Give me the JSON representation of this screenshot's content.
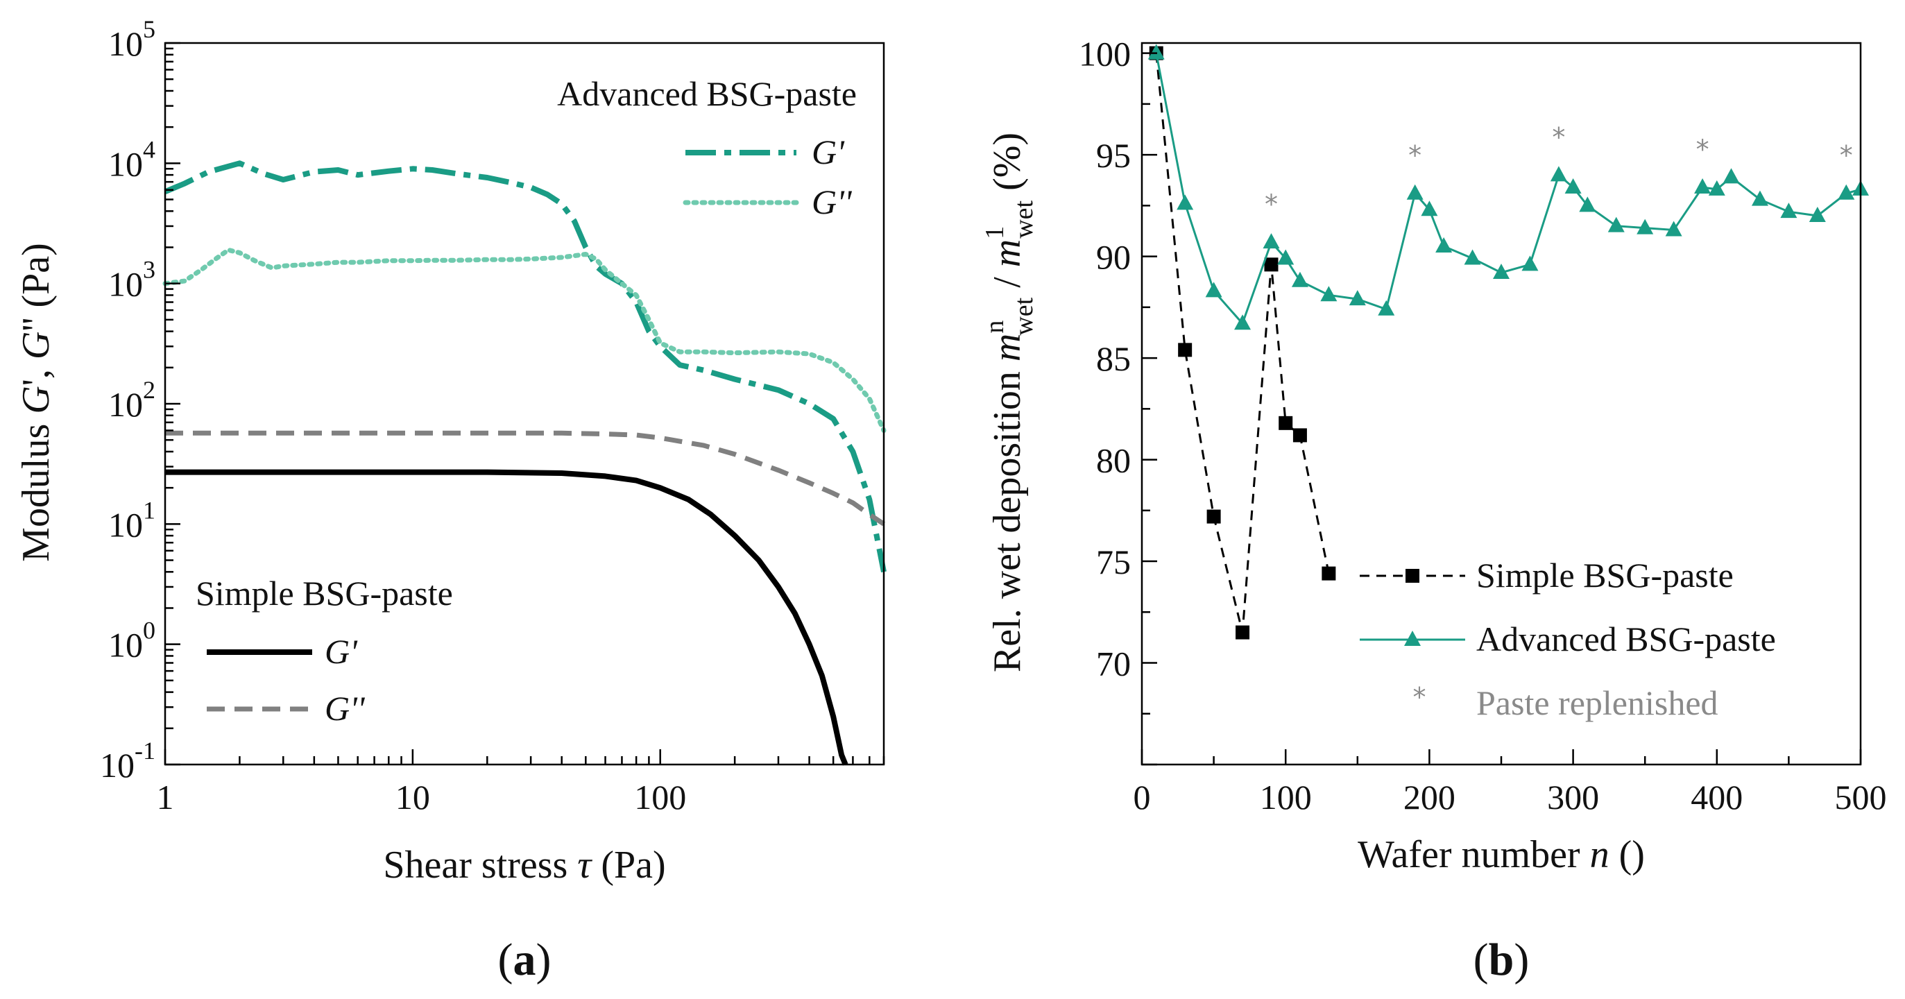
{
  "chart_data": [
    {
      "type": "line",
      "panel_label": "a",
      "xscale": "log",
      "yscale": "log",
      "xlim": [
        1,
        800
      ],
      "ylim": [
        0.1,
        100000
      ],
      "xlabel": {
        "pre": "Shear stress ",
        "sym": "τ",
        "post": " (Pa)"
      },
      "ylabel": {
        "p1": "Modulus ",
        "g1": "G",
        "p2": "', ",
        "g2": "G",
        "p3": "'' (Pa)"
      },
      "x_ticks": [
        {
          "v": 1,
          "label": "1"
        },
        {
          "v": 10,
          "label": "10"
        },
        {
          "v": 100,
          "label": "100"
        }
      ],
      "y_ticks": [
        {
          "v": 0.1,
          "base": "10",
          "exp": "-1"
        },
        {
          "v": 1,
          "base": "10",
          "exp": "0"
        },
        {
          "v": 10,
          "base": "10",
          "exp": "1"
        },
        {
          "v": 100,
          "base": "10",
          "exp": "2"
        },
        {
          "v": 1000,
          "base": "10",
          "exp": "3"
        },
        {
          "v": 10000,
          "base": "10",
          "exp": "4"
        },
        {
          "v": 100000,
          "base": "10",
          "exp": "5"
        }
      ],
      "legend_groups": [
        {
          "title": "Advanced BSG-paste",
          "placement": "top-right",
          "entries": [
            "G'",
            "G''"
          ]
        },
        {
          "title": "Simple BSG-paste",
          "placement": "bottom-left",
          "entries": [
            "G'",
            "G''"
          ]
        }
      ],
      "series": [
        {
          "name": "Advanced BSG-paste G'",
          "legend": "G'",
          "color": "#1a9c85",
          "style": "dashdot",
          "x": [
            1,
            1.2,
            1.5,
            2,
            2.5,
            3,
            4,
            5,
            6,
            8,
            10,
            12,
            15,
            20,
            25,
            30,
            35,
            40,
            45,
            50,
            55,
            60,
            70,
            80,
            90,
            100,
            120,
            150,
            200,
            300,
            400,
            500,
            600,
            700,
            800
          ],
          "y": [
            5800,
            6800,
            8500,
            10000,
            8200,
            7300,
            8500,
            8800,
            8000,
            8600,
            9000,
            8800,
            8200,
            7600,
            6900,
            6300,
            5500,
            4600,
            3300,
            2000,
            1400,
            1200,
            1000,
            700,
            400,
            300,
            210,
            190,
            160,
            130,
            100,
            75,
            40,
            16,
            4
          ]
        },
        {
          "name": "Advanced BSG-paste G''",
          "legend": "G''",
          "color": "#6fcaae",
          "style": "dotted",
          "x": [
            1,
            1.2,
            1.4,
            1.6,
            1.8,
            2,
            2.3,
            2.7,
            3,
            4,
            5,
            6,
            8,
            10,
            12,
            15,
            20,
            25,
            30,
            40,
            50,
            55,
            60,
            70,
            80,
            90,
            100,
            120,
            150,
            200,
            300,
            400,
            500,
            600,
            700,
            800
          ],
          "y": [
            1000,
            1050,
            1300,
            1600,
            1900,
            1800,
            1550,
            1350,
            1400,
            1450,
            1500,
            1500,
            1550,
            1550,
            1560,
            1560,
            1580,
            1580,
            1600,
            1650,
            1750,
            1600,
            1300,
            1000,
            800,
            500,
            320,
            270,
            270,
            265,
            270,
            260,
            220,
            160,
            110,
            60
          ]
        },
        {
          "name": "Simple BSG-paste G'",
          "legend": "G'",
          "color": "#000000",
          "style": "solid",
          "x": [
            1,
            2,
            5,
            10,
            20,
            40,
            60,
            80,
            100,
            130,
            160,
            200,
            250,
            300,
            350,
            400,
            450,
            500,
            540,
            560
          ],
          "y": [
            27,
            27,
            27,
            27,
            27,
            26.5,
            25,
            23,
            20,
            16,
            12,
            8,
            5,
            3,
            1.8,
            1.0,
            0.55,
            0.25,
            0.12,
            0.09
          ]
        },
        {
          "name": "Simple BSG-paste G''",
          "legend": "G''",
          "color": "#808080",
          "style": "dashed",
          "x": [
            1,
            2,
            5,
            10,
            20,
            40,
            60,
            80,
            100,
            150,
            200,
            300,
            400,
            500,
            600,
            700,
            800
          ],
          "y": [
            57,
            57,
            57,
            57,
            57,
            57,
            56,
            55,
            52,
            45,
            38,
            28,
            22,
            18,
            15,
            12,
            10
          ]
        }
      ]
    },
    {
      "type": "line",
      "panel_label": "b",
      "xlim": [
        0,
        500
      ],
      "ylim": [
        65,
        100.5
      ],
      "xlabel": {
        "pre": "Wafer number ",
        "sym": "n",
        "post": " ()"
      },
      "ylabel": {
        "pre": "Rel. wet deposition ",
        "m1": "m",
        "sup1": "n",
        "sub1": "wet",
        "sep": " / ",
        "m2": "m",
        "sup2": "1",
        "sub2": "wet",
        "post": " (%)"
      },
      "x_ticks": [
        0,
        100,
        200,
        300,
        400,
        500
      ],
      "y_ticks": [
        70,
        75,
        80,
        85,
        90,
        95,
        100
      ],
      "legend_placement": "bottom-right",
      "series": [
        {
          "name": "Simple BSG-paste",
          "color": "#000000",
          "style": "dashed",
          "marker": "square",
          "x": [
            10,
            30,
            50,
            70,
            90,
            100,
            110,
            130
          ],
          "y": [
            100,
            85.4,
            77.2,
            71.5,
            89.6,
            81.8,
            81.2,
            74.4
          ]
        },
        {
          "name": "Advanced BSG-paste",
          "color": "#1a9c85",
          "style": "solid",
          "marker": "triangle",
          "x": [
            10,
            30,
            50,
            70,
            90,
            100,
            110,
            130,
            150,
            170,
            190,
            200,
            210,
            230,
            250,
            270,
            290,
            300,
            310,
            330,
            350,
            370,
            390,
            400,
            410,
            430,
            450,
            470,
            490,
            500
          ],
          "y": [
            100,
            92.6,
            88.3,
            86.7,
            90.7,
            89.9,
            88.8,
            88.1,
            87.9,
            87.4,
            93.1,
            92.3,
            90.5,
            89.9,
            89.2,
            89.6,
            94.0,
            93.4,
            92.5,
            91.5,
            91.4,
            91.3,
            93.4,
            93.3,
            93.9,
            92.8,
            92.2,
            92.0,
            93.1,
            93.3
          ]
        },
        {
          "name": "Paste replenished",
          "color": "#8a8a8a",
          "style": "none",
          "marker": "asterisk",
          "x": [
            90,
            190,
            290,
            390,
            490
          ],
          "y": [
            92.6,
            95.0,
            95.9,
            95.3,
            95.0
          ]
        }
      ]
    }
  ]
}
